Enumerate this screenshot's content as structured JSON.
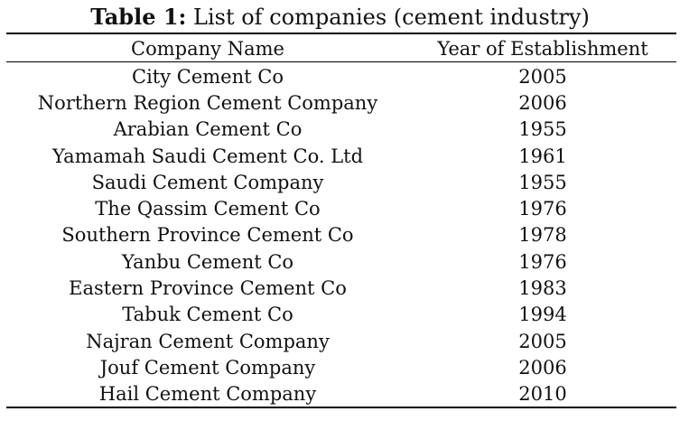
{
  "caption": {
    "label": "Table 1:",
    "text": "List of companies (cement industry)"
  },
  "table": {
    "headers": [
      "Company Name",
      "Year of Establishment"
    ],
    "rows": [
      {
        "name": "City Cement Co",
        "year": "2005"
      },
      {
        "name": "Northern Region Cement Company",
        "year": "2006"
      },
      {
        "name": "Arabian Cement Co",
        "year": "1955"
      },
      {
        "name": "Yamamah Saudi Cement Co. Ltd",
        "year": "1961"
      },
      {
        "name": "Saudi Cement Company",
        "year": "1955"
      },
      {
        "name": "The Qassim Cement Co",
        "year": "1976"
      },
      {
        "name": "Southern Province Cement Co",
        "year": "1978"
      },
      {
        "name": "Yanbu Cement Co",
        "year": "1976"
      },
      {
        "name": "Eastern Province Cement Co",
        "year": "1983"
      },
      {
        "name": "Tabuk Cement Co",
        "year": "1994"
      },
      {
        "name": "Najran Cement Company",
        "year": "2005"
      },
      {
        "name": "Jouf Cement Company",
        "year": "2006"
      },
      {
        "name": "Hail Cement Company",
        "year": "2010"
      }
    ]
  }
}
